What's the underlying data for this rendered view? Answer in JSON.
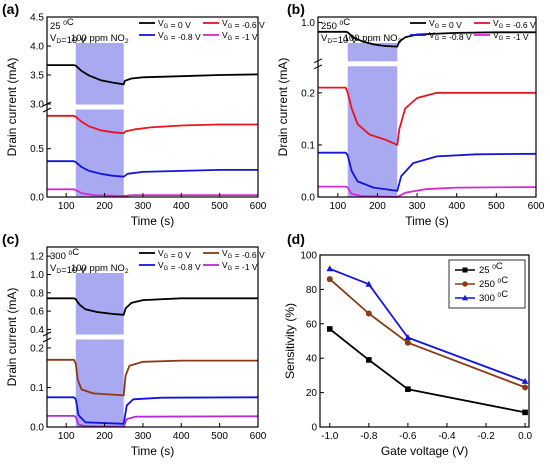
{
  "chart_data": [
    {
      "panel": "(a)",
      "type": "line",
      "conditions": [
        "25 °C",
        "V_D=10 V"
      ],
      "exposure_label": "100 ppm NO2",
      "exposure_window": [
        125,
        250
      ],
      "xlabel": "Time (s)",
      "ylabel": "Drain current (mA)",
      "xlim": [
        50,
        600
      ],
      "x_ticks": [
        "100",
        "200",
        "300",
        "400",
        "500",
        "600"
      ],
      "y_break": true,
      "ylim_upper": [
        3.0,
        4.5
      ],
      "ylim_lower": [
        0.0,
        0.9
      ],
      "y_ticks_upper": [
        "3.0",
        "3.5",
        "4.0",
        "4.5"
      ],
      "y_ticks_lower": [
        "0.0",
        "0.5"
      ],
      "legend_position": "top",
      "series": [
        {
          "name": "V_G = 0 V",
          "color": "#000000",
          "points": [
            [
              50,
              3.67
            ],
            [
              120,
              3.67
            ],
            [
              125,
              3.66
            ],
            [
              140,
              3.57
            ],
            [
              160,
              3.49
            ],
            [
              190,
              3.41
            ],
            [
              220,
              3.37
            ],
            [
              250,
              3.34
            ],
            [
              253,
              3.4
            ],
            [
              270,
              3.44
            ],
            [
              300,
              3.46
            ],
            [
              400,
              3.48
            ],
            [
              500,
              3.5
            ],
            [
              600,
              3.51
            ]
          ]
        },
        {
          "name": "V_G = -0.6 V",
          "color": "#e8141e",
          "points": [
            [
              50,
              0.84
            ],
            [
              120,
              0.84
            ],
            [
              125,
              0.83
            ],
            [
              140,
              0.78
            ],
            [
              160,
              0.73
            ],
            [
              190,
              0.69
            ],
            [
              220,
              0.67
            ],
            [
              250,
              0.66
            ],
            [
              255,
              0.68
            ],
            [
              280,
              0.7
            ],
            [
              320,
              0.72
            ],
            [
              400,
              0.74
            ],
            [
              500,
              0.75
            ],
            [
              600,
              0.75
            ]
          ]
        },
        {
          "name": "V_G = -0.8 V",
          "color": "#1414dc",
          "points": [
            [
              50,
              0.37
            ],
            [
              120,
              0.37
            ],
            [
              125,
              0.36
            ],
            [
              140,
              0.31
            ],
            [
              160,
              0.27
            ],
            [
              190,
              0.24
            ],
            [
              220,
              0.22
            ],
            [
              250,
              0.21
            ],
            [
              260,
              0.24
            ],
            [
              300,
              0.26
            ],
            [
              400,
              0.27
            ],
            [
              500,
              0.28
            ],
            [
              600,
              0.28
            ]
          ]
        },
        {
          "name": "V_G = -1 V",
          "color": "#d42ad4",
          "points": [
            [
              50,
              0.08
            ],
            [
              120,
              0.08
            ],
            [
              125,
              0.07
            ],
            [
              140,
              0.04
            ],
            [
              170,
              0.02
            ],
            [
              250,
              0.01
            ],
            [
              270,
              0.02
            ],
            [
              350,
              0.02
            ],
            [
              600,
              0.02
            ]
          ]
        }
      ]
    },
    {
      "panel": "(b)",
      "type": "line",
      "conditions": [
        "250 °C",
        "V_D=10 V"
      ],
      "exposure_label": "100 ppm NO2",
      "exposure_window": [
        125,
        250
      ],
      "xlabel": "Time (s)",
      "ylabel": "Drain current (mA)",
      "xlim": [
        50,
        600
      ],
      "x_ticks": [
        "100",
        "200",
        "300",
        "400",
        "500",
        "600"
      ],
      "y_break": true,
      "ylim_upper": [
        0.3,
        1.1
      ],
      "ylim_lower": [
        0.0,
        0.25
      ],
      "y_ticks_upper": [
        "1.0"
      ],
      "y_ticks_lower": [
        "0.0",
        "0.1",
        "0.2"
      ],
      "legend_position": "top",
      "series": [
        {
          "name": "V_G = 0 V",
          "color": "#000000",
          "points": [
            [
              50,
              0.83
            ],
            [
              120,
              0.83
            ],
            [
              125,
              0.82
            ],
            [
              140,
              0.72
            ],
            [
              160,
              0.66
            ],
            [
              190,
              0.6
            ],
            [
              220,
              0.57
            ],
            [
              250,
              0.56
            ],
            [
              255,
              0.65
            ],
            [
              270,
              0.73
            ],
            [
              300,
              0.78
            ],
            [
              400,
              0.81
            ],
            [
              500,
              0.82
            ],
            [
              600,
              0.82
            ]
          ]
        },
        {
          "name": "V_G = -0.6 V",
          "color": "#e8141e",
          "points": [
            [
              50,
              0.21
            ],
            [
              120,
              0.21
            ],
            [
              125,
              0.2
            ],
            [
              135,
              0.17
            ],
            [
              150,
              0.14
            ],
            [
              180,
              0.12
            ],
            [
              220,
              0.11
            ],
            [
              250,
              0.1
            ],
            [
              255,
              0.13
            ],
            [
              270,
              0.17
            ],
            [
              300,
              0.19
            ],
            [
              350,
              0.2
            ],
            [
              600,
              0.2
            ]
          ]
        },
        {
          "name": "V_G = -0.8 V",
          "color": "#1414dc",
          "points": [
            [
              50,
              0.085
            ],
            [
              120,
              0.085
            ],
            [
              125,
              0.08
            ],
            [
              135,
              0.05
            ],
            [
              150,
              0.03
            ],
            [
              190,
              0.018
            ],
            [
              250,
              0.012
            ],
            [
              260,
              0.04
            ],
            [
              290,
              0.065
            ],
            [
              350,
              0.078
            ],
            [
              450,
              0.082
            ],
            [
              600,
              0.083
            ]
          ]
        },
        {
          "name": "V_G = -1 V",
          "color": "#d42ad4",
          "points": [
            [
              50,
              0.02
            ],
            [
              120,
              0.02
            ],
            [
              125,
              0.018
            ],
            [
              135,
              0.006
            ],
            [
              160,
              0.002
            ],
            [
              250,
              0.0
            ],
            [
              270,
              0.008
            ],
            [
              320,
              0.015
            ],
            [
              400,
              0.018
            ],
            [
              600,
              0.019
            ]
          ]
        }
      ]
    },
    {
      "panel": "(c)",
      "type": "line",
      "conditions": [
        "300 °C",
        "V_D=10 V"
      ],
      "exposure_label": "100 ppm NO2",
      "exposure_window": [
        125,
        250
      ],
      "xlabel": "Time (s)",
      "ylabel": "Drain current (mA)",
      "xlim": [
        50,
        600
      ],
      "x_ticks": [
        "100",
        "200",
        "300",
        "400",
        "500",
        "600"
      ],
      "y_break": true,
      "ylim_upper": [
        0.35,
        1.3
      ],
      "ylim_lower": [
        0.0,
        0.22
      ],
      "y_ticks_upper": [
        "0.4",
        "0.6",
        "0.8",
        "1.0",
        "1.2"
      ],
      "y_ticks_lower": [
        "0.0",
        "0.1",
        "0.2"
      ],
      "legend_position": "top",
      "series": [
        {
          "name": "V_G = 0 V",
          "color": "#000000",
          "points": [
            [
              50,
              0.74
            ],
            [
              120,
              0.74
            ],
            [
              125,
              0.73
            ],
            [
              135,
              0.67
            ],
            [
              150,
              0.62
            ],
            [
              180,
              0.59
            ],
            [
              220,
              0.57
            ],
            [
              250,
              0.56
            ],
            [
              255,
              0.63
            ],
            [
              270,
              0.69
            ],
            [
              300,
              0.72
            ],
            [
              400,
              0.74
            ],
            [
              600,
              0.74
            ]
          ]
        },
        {
          "name": "V_G = -0.6 V",
          "color": "#8b3a14",
          "points": [
            [
              50,
              0.17
            ],
            [
              120,
              0.17
            ],
            [
              125,
              0.16
            ],
            [
              130,
              0.12
            ],
            [
              140,
              0.095
            ],
            [
              170,
              0.085
            ],
            [
              250,
              0.08
            ],
            [
              255,
              0.13
            ],
            [
              265,
              0.155
            ],
            [
              300,
              0.165
            ],
            [
              400,
              0.168
            ],
            [
              600,
              0.168
            ]
          ]
        },
        {
          "name": "V_G = -0.8 V",
          "color": "#1414dc",
          "points": [
            [
              50,
              0.075
            ],
            [
              120,
              0.075
            ],
            [
              125,
              0.07
            ],
            [
              132,
              0.03
            ],
            [
              150,
              0.012
            ],
            [
              250,
              0.008
            ],
            [
              258,
              0.055
            ],
            [
              275,
              0.07
            ],
            [
              350,
              0.074
            ],
            [
              600,
              0.075
            ]
          ]
        },
        {
          "name": "V_G = -1 V",
          "color": "#b030d0",
          "points": [
            [
              50,
              0.028
            ],
            [
              120,
              0.028
            ],
            [
              125,
              0.025
            ],
            [
              132,
              0.006
            ],
            [
              150,
              0.002
            ],
            [
              250,
              0.001
            ],
            [
              258,
              0.02
            ],
            [
              280,
              0.026
            ],
            [
              600,
              0.027
            ]
          ]
        }
      ]
    },
    {
      "panel": "(d)",
      "type": "line",
      "xlabel": "Gate voltage (V)",
      "ylabel": "Sensitivity (%)",
      "xlim": [
        -1.05,
        0.02
      ],
      "ylim": [
        0,
        100
      ],
      "x_ticks": [
        "-1.0",
        "-0.8",
        "-0.6",
        "-0.4",
        "-0.2",
        "0.0"
      ],
      "y_ticks": [
        "0",
        "20",
        "40",
        "60",
        "80",
        "100"
      ],
      "legend_position": "top-right",
      "x": [
        -1.0,
        -0.8,
        -0.6,
        0.0
      ],
      "series": [
        {
          "name": "25 °C",
          "color": "#000000",
          "marker": "square",
          "values": [
            57,
            39,
            22,
            8.5
          ]
        },
        {
          "name": "250 °C",
          "color": "#8b3a14",
          "marker": "circle",
          "values": [
            86,
            66,
            49,
            23
          ]
        },
        {
          "name": "300 °C",
          "color": "#1414dc",
          "marker": "triangle",
          "values": [
            92,
            83,
            52,
            26.5
          ]
        }
      ]
    }
  ]
}
